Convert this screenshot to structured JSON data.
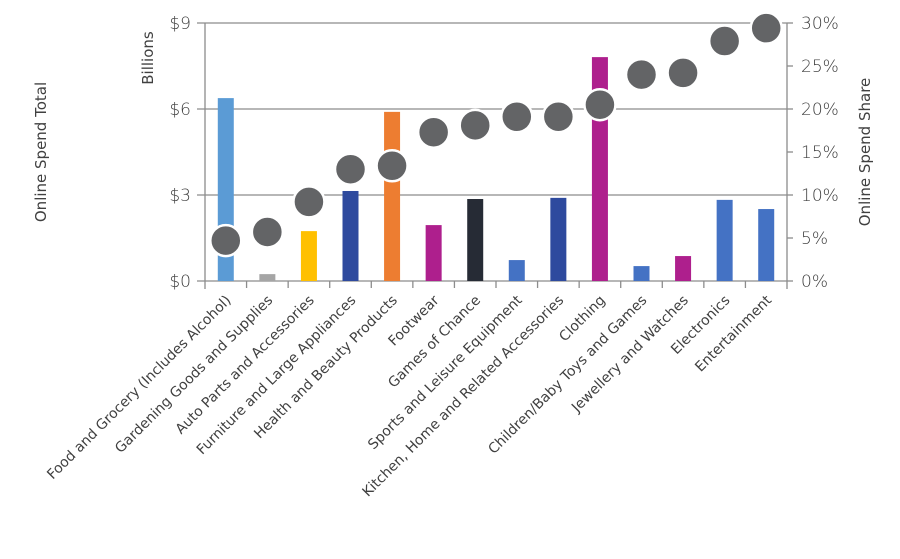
{
  "chart_data": {
    "type": "bar+scatter",
    "title": "",
    "categories": [
      "Food and Grocery (Includes Alcohol)",
      "Gardening Goods and Supplies",
      "Auto Parts and Accessories",
      "Furniture and Large Appliances",
      "Health and Beauty Products",
      "Footwear",
      "Games of Chance",
      "Sports and Leisure Equipment",
      "Kitchen, Home and Related Accessories",
      "Clothing",
      "Children/Baby Toys and Games",
      "Jewellery and Watches",
      "Electronics",
      "Entertainment"
    ],
    "series": [
      {
        "name": "Online Spend Total",
        "type": "bar",
        "axis": "left",
        "unit": "Billions $",
        "values": [
          6.38,
          0.24,
          1.74,
          3.14,
          5.9,
          1.95,
          2.86,
          0.73,
          2.9,
          7.81,
          0.52,
          0.87,
          2.83,
          2.51
        ],
        "colors": [
          "#5B9BD5",
          "#A5A5A5",
          "#FFC000",
          "#2E4A9E",
          "#ED7D31",
          "#AE1F8D",
          "#262B35",
          "#4472C4",
          "#2E4A9E",
          "#AE1F8D",
          "#4472C4",
          "#AE1F8D",
          "#4472C4",
          "#4472C4"
        ]
      },
      {
        "name": "Online Spend Share",
        "type": "scatter",
        "axis": "right",
        "unit": "%",
        "values": [
          4.7,
          5.7,
          9.2,
          13.0,
          13.4,
          17.3,
          18.1,
          19.1,
          19.1,
          20.5,
          24.0,
          24.2,
          27.9,
          29.4
        ],
        "color": "#636466"
      }
    ],
    "left_axis": {
      "title": "Online Spend Total",
      "unit_label": "Billions",
      "ticks": [
        "$0",
        "$3",
        "$6",
        "$9"
      ],
      "range": [
        0,
        9
      ]
    },
    "right_axis": {
      "title": "Online Spend Share",
      "ticks": [
        "0%",
        "5%",
        "10%",
        "15%",
        "20%",
        "25%",
        "30%"
      ],
      "range": [
        0,
        30
      ]
    },
    "xlabel": "",
    "grid": true,
    "legend": "none"
  }
}
